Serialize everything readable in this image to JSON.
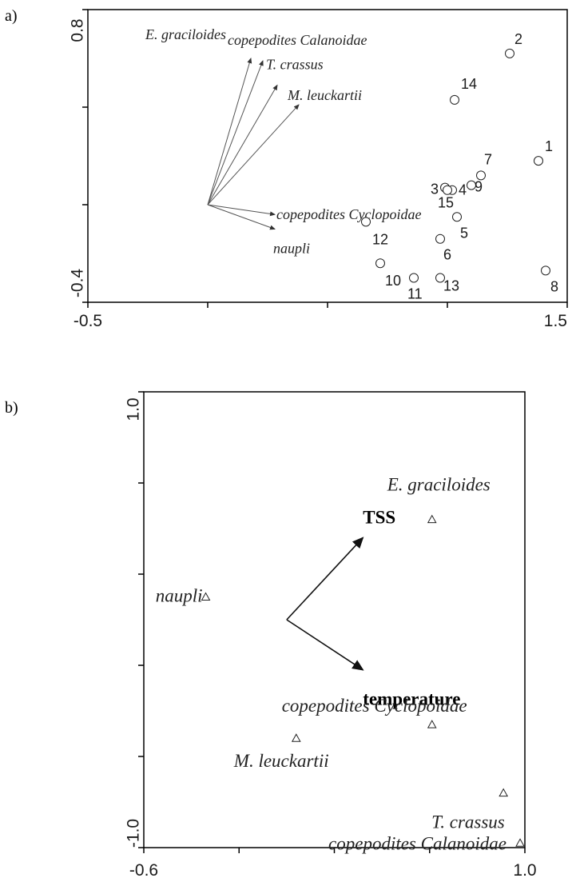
{
  "chart_data": [
    {
      "panel_label": "a)",
      "type": "scatter",
      "xlim": [
        -0.5,
        1.5
      ],
      "ylim": [
        -0.4,
        0.8
      ],
      "x_tick_labels": [
        "-0.5",
        "1.5"
      ],
      "y_tick_labels": [
        "0.8",
        "-0.4"
      ],
      "sites": [
        {
          "label": "1",
          "x": 1.38,
          "y": 0.18
        },
        {
          "label": "2",
          "x": 1.26,
          "y": 0.62
        },
        {
          "label": "3",
          "x": 0.99,
          "y": 0.07
        },
        {
          "label": "4",
          "x": 1.02,
          "y": 0.06
        },
        {
          "label": "5",
          "x": 1.04,
          "y": -0.05
        },
        {
          "label": "6",
          "x": 0.97,
          "y": -0.14
        },
        {
          "label": "7",
          "x": 1.14,
          "y": 0.12
        },
        {
          "label": "8",
          "x": 1.41,
          "y": -0.27
        },
        {
          "label": "9",
          "x": 1.1,
          "y": 0.08
        },
        {
          "label": "10",
          "x": 0.72,
          "y": -0.24
        },
        {
          "label": "11",
          "x": 0.86,
          "y": -0.3
        },
        {
          "label": "12",
          "x": 0.66,
          "y": -0.07
        },
        {
          "label": "13",
          "x": 0.97,
          "y": -0.3
        },
        {
          "label": "14",
          "x": 1.03,
          "y": 0.43
        },
        {
          "label": "15",
          "x": 1.0,
          "y": 0.06
        }
      ],
      "species_arrows": [
        {
          "label": "E. graciloides",
          "x": 0.18,
          "y": 0.6
        },
        {
          "label": "copepodites Calanoidae",
          "x": 0.23,
          "y": 0.59
        },
        {
          "label": "T. crassus",
          "x": 0.29,
          "y": 0.49
        },
        {
          "label": "M. leuckartii",
          "x": 0.38,
          "y": 0.41
        },
        {
          "label": "copepodites Cyclopoidae",
          "x": 0.28,
          "y": -0.04
        },
        {
          "label": "naupli",
          "x": 0.28,
          "y": -0.1
        }
      ]
    },
    {
      "panel_label": "b)",
      "type": "scatter",
      "xlim": [
        -0.6,
        1.0
      ],
      "ylim": [
        -1.0,
        1.0
      ],
      "x_tick_labels": [
        "-0.6",
        "1.0"
      ],
      "y_tick_labels": [
        "1.0",
        "-1.0"
      ],
      "species": [
        {
          "label": "E. graciloides",
          "x": 0.61,
          "y": 0.44
        },
        {
          "label": "naupli",
          "x": -0.34,
          "y": 0.1
        },
        {
          "label": "copepodites Cyclopoidae",
          "x": 0.61,
          "y": -0.46
        },
        {
          "label": "M. leuckartii",
          "x": 0.04,
          "y": -0.52
        },
        {
          "label": "T. crassus",
          "x": 0.91,
          "y": -0.76
        },
        {
          "label": "copepodites Calanoidae",
          "x": 0.98,
          "y": -0.98
        }
      ],
      "env_arrows": [
        {
          "label": "TSS",
          "x": 0.32,
          "y": 0.36
        },
        {
          "label": "temperature",
          "x": 0.32,
          "y": -0.22
        }
      ]
    }
  ]
}
